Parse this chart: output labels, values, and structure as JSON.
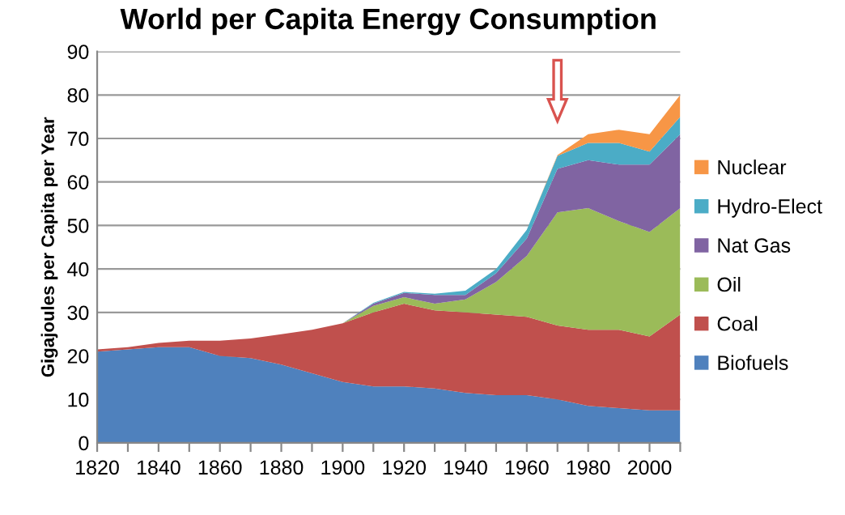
{
  "chart_data": {
    "type": "area",
    "stacked": true,
    "title": "World per Capita Energy Consumption",
    "ylabel": "Gigajoules per Capita per Year",
    "x": [
      1820,
      1830,
      1840,
      1850,
      1860,
      1870,
      1880,
      1890,
      1900,
      1910,
      1920,
      1930,
      1940,
      1950,
      1960,
      1970,
      1980,
      1990,
      2000,
      2010
    ],
    "series": [
      {
        "name": "Biofuels",
        "color": "#4f81bd",
        "values": [
          21,
          21.5,
          22,
          22,
          20,
          19.5,
          18,
          16,
          14,
          13,
          13,
          12.5,
          11.5,
          11,
          11,
          10,
          8.5,
          8,
          7.5,
          7.5
        ]
      },
      {
        "name": "Coal",
        "color": "#c0504d",
        "values": [
          0.5,
          0.5,
          1,
          1.5,
          3.5,
          4.5,
          7,
          10,
          13.5,
          17,
          19,
          18,
          18.5,
          18.5,
          18,
          17,
          17.5,
          18,
          17,
          22
        ]
      },
      {
        "name": "Oil",
        "color": "#9bbb59",
        "values": [
          0,
          0,
          0,
          0,
          0,
          0,
          0,
          0,
          0,
          1.5,
          1.5,
          1.5,
          3,
          7.5,
          14,
          26,
          28,
          25,
          24,
          24.5
        ]
      },
      {
        "name": "Nat Gas",
        "color": "#8064a2",
        "values": [
          0,
          0,
          0,
          0,
          0,
          0,
          0,
          0,
          0,
          0.5,
          1,
          2,
          1,
          2,
          4,
          10,
          11,
          13,
          15.5,
          17
        ]
      },
      {
        "name": "Hydro-Elect",
        "color": "#4bacc6",
        "values": [
          0,
          0,
          0,
          0,
          0,
          0,
          0,
          0,
          0,
          0.2,
          0.2,
          0.3,
          1,
          1,
          2,
          3,
          4,
          5,
          3,
          4
        ]
      },
      {
        "name": "Nuclear",
        "color": "#f79646",
        "values": [
          0,
          0,
          0,
          0,
          0,
          0,
          0,
          0,
          0,
          0,
          0,
          0,
          0,
          0,
          0,
          0.2,
          2,
          3,
          4,
          5
        ]
      }
    ],
    "xlim": [
      1820,
      2010
    ],
    "ylim": [
      0,
      90
    ],
    "xticks": [
      1820,
      {
        "value": 1830,
        "label": null
      },
      1840,
      {
        "value": 1850,
        "label": null
      },
      1860,
      {
        "value": 1870,
        "label": null
      },
      1880,
      {
        "value": 1890,
        "label": null
      },
      1900,
      {
        "value": 1910,
        "label": null
      },
      1920,
      {
        "value": 1930,
        "label": null
      },
      1940,
      {
        "value": 1950,
        "label": null
      },
      1960,
      {
        "value": 1970,
        "label": null
      },
      1980,
      {
        "value": 1990,
        "label": null
      },
      2000,
      {
        "value": 2010,
        "label": null
      }
    ],
    "yticks": [
      0,
      10,
      20,
      30,
      40,
      50,
      60,
      70,
      80,
      90
    ],
    "grid": "y",
    "legend": "right"
  }
}
